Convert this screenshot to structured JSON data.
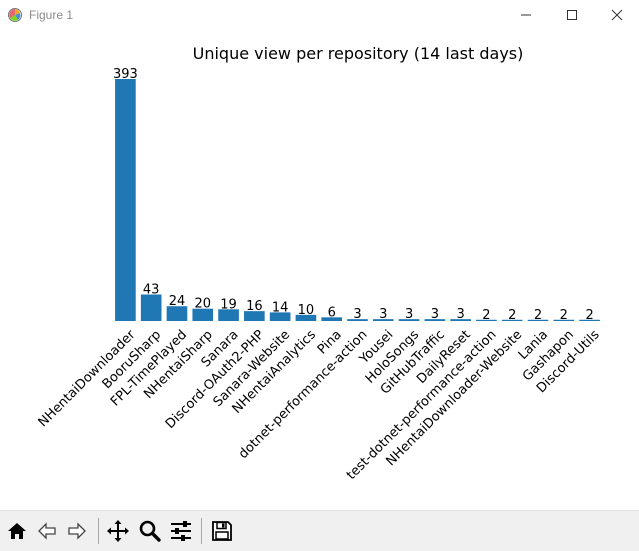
{
  "window": {
    "title": "Figure 1",
    "icons": {
      "app": "matplotlib-figure-icon",
      "minimize": "minimize-icon",
      "maximize": "maximize-icon",
      "close": "close-icon"
    }
  },
  "toolbar": {
    "buttons": [
      {
        "name": "home-button",
        "icon": "home-icon"
      },
      {
        "name": "back-button",
        "icon": "back-arrow-icon"
      },
      {
        "name": "forward-button",
        "icon": "forward-arrow-icon"
      },
      {
        "name": "pan-button",
        "icon": "pan-move-icon"
      },
      {
        "name": "zoom-button",
        "icon": "zoom-magnifier-icon"
      },
      {
        "name": "configure-subplots-button",
        "icon": "sliders-icon"
      },
      {
        "name": "save-button",
        "icon": "save-floppy-icon"
      }
    ]
  },
  "chart_data": {
    "type": "bar",
    "title": "Unique view per repository (14 last days)",
    "xlabel": "",
    "ylabel": "",
    "categories": [
      "NHentaiDownloader",
      "BooruSharp",
      "FPL-TimePlayed",
      "NHentaiSharp",
      "Sanara",
      "Discord-OAuth2-PHP",
      "Sanara-Website",
      "NHentaiAnalytics",
      "Pina",
      "dotnet-performance-action",
      "Yousei",
      "HoloSongs",
      "GitHubTraffic",
      "DailyReset",
      "test-dotnet-performance-action",
      "NHentaiDownloader-Website",
      "Lania",
      "Gashapon",
      "Discord-Utils"
    ],
    "values": [
      393,
      43,
      24,
      20,
      19,
      16,
      14,
      10,
      6,
      3,
      3,
      3,
      3,
      3,
      2,
      2,
      2,
      2,
      2
    ],
    "data_labels": [
      "393",
      "43",
      "24",
      "20",
      "19",
      "16",
      "14",
      "10",
      "6",
      "3",
      "3",
      "3",
      "3",
      "3",
      "2",
      "2",
      "2",
      "2",
      "2"
    ],
    "ylim": [
      0,
      393
    ],
    "grid": false,
    "axes_visible": false,
    "bar_color": "#1f77b4",
    "tick_label_rotation": 45
  }
}
